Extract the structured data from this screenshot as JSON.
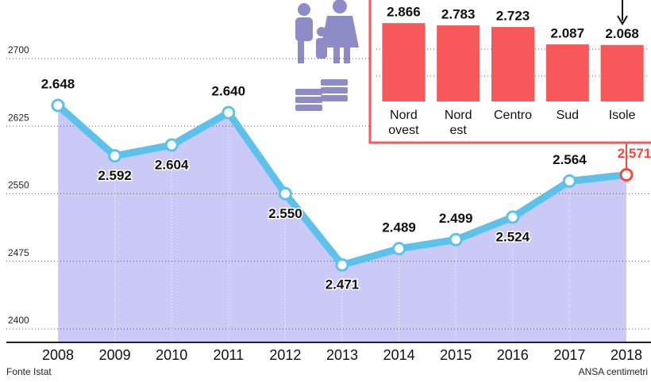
{
  "chart_data": [
    {
      "type": "area-line",
      "categories": [
        "2008",
        "2009",
        "2010",
        "2011",
        "2012",
        "2013",
        "2014",
        "2015",
        "2016",
        "2017",
        "2018"
      ],
      "values": [
        2648,
        2592,
        2604,
        2640,
        2550,
        2471,
        2489,
        2499,
        2524,
        2564,
        2571
      ],
      "value_labels": [
        "2.648",
        "2.592",
        "2.604",
        "2.640",
        "2.550",
        "2.471",
        "2.489",
        "2.499",
        "2.524",
        "2.564",
        "2.571"
      ],
      "color": "#5cc2ec",
      "fill": "#cbc9f6",
      "highlight_color": "#f04a3e",
      "ylim": [
        2385,
        2765
      ],
      "yticks": [
        2400,
        2475,
        2550,
        2625,
        2700
      ],
      "grid": true,
      "source": "Fonte Istat",
      "credit": "ANSA centimetri"
    },
    {
      "type": "bar",
      "categories": [
        "Nord ovest",
        "Nord est",
        "Centro",
        "Sud",
        "Isole"
      ],
      "values": [
        2866,
        2783,
        2723,
        2087,
        2068
      ],
      "value_labels": [
        "2.866",
        "2.783",
        "2.723",
        "2.087",
        "2.068"
      ],
      "color": "#f9585a",
      "ylim": [
        0,
        2900
      ]
    }
  ]
}
